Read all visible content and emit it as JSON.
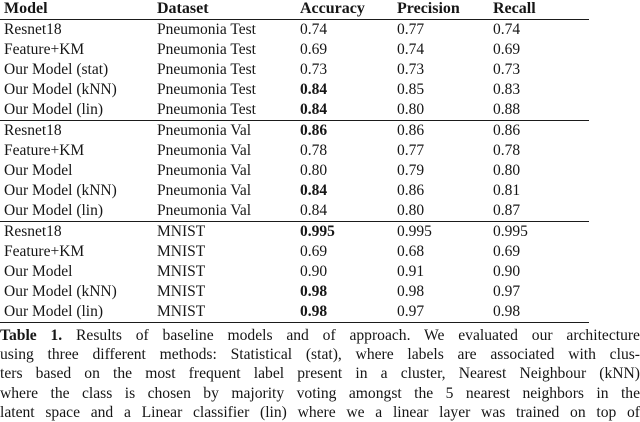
{
  "table": {
    "headers": {
      "model": "Model",
      "dataset": "Dataset",
      "accuracy": "Accuracy",
      "precision": "Precision",
      "recall": "Recall"
    },
    "rows": [
      {
        "model": "Resnet18",
        "dataset": "Pneumonia Test",
        "accuracy": "0.74",
        "precision": "0.77",
        "recall": "0.74",
        "accuracy_bold": false
      },
      {
        "model": "Feature+KM",
        "dataset": "Pneumonia Test",
        "accuracy": "0.69",
        "precision": "0.74",
        "recall": "0.69",
        "accuracy_bold": false
      },
      {
        "model": "Our Model (stat)",
        "dataset": "Pneumonia Test",
        "accuracy": "0.73",
        "precision": "0.73",
        "recall": "0.73",
        "accuracy_bold": false
      },
      {
        "model": "Our Model (kNN)",
        "dataset": "Pneumonia Test",
        "accuracy": "0.84",
        "precision": "0.85",
        "recall": "0.83",
        "accuracy_bold": true
      },
      {
        "model": "Our Model (lin)",
        "dataset": "Pneumonia Test",
        "accuracy": "0.84",
        "precision": "0.80",
        "recall": "0.88",
        "accuracy_bold": true
      },
      {
        "model": "Resnet18",
        "dataset": "Pneumonia Val",
        "accuracy": "0.86",
        "precision": "0.86",
        "recall": "0.86",
        "accuracy_bold": true
      },
      {
        "model": "Feature+KM",
        "dataset": "Pneumonia Val",
        "accuracy": "0.78",
        "precision": "0.77",
        "recall": "0.78",
        "accuracy_bold": false
      },
      {
        "model": "Our Model",
        "dataset": "Pneumonia Val",
        "accuracy": "0.80",
        "precision": "0.79",
        "recall": "0.80",
        "accuracy_bold": false
      },
      {
        "model": "Our Model (kNN)",
        "dataset": "Pneumonia Val",
        "accuracy": "0.84",
        "precision": "0.86",
        "recall": "0.81",
        "accuracy_bold": true
      },
      {
        "model": "Our Model (lin)",
        "dataset": "Pneumonia Val",
        "accuracy": "0.84",
        "precision": "0.80",
        "recall": "0.87",
        "accuracy_bold": false
      },
      {
        "model": "Resnet18",
        "dataset": "MNIST",
        "accuracy": "0.995",
        "precision": "0.995",
        "recall": "0.995",
        "accuracy_bold": true
      },
      {
        "model": "Feature+KM",
        "dataset": "MNIST",
        "accuracy": "0.69",
        "precision": "0.68",
        "recall": "0.69",
        "accuracy_bold": false
      },
      {
        "model": "Our Model",
        "dataset": "MNIST",
        "accuracy": "0.90",
        "precision": "0.91",
        "recall": "0.90",
        "accuracy_bold": false
      },
      {
        "model": "Our Model (kNN)",
        "dataset": "MNIST",
        "accuracy": "0.98",
        "precision": "0.98",
        "recall": "0.97",
        "accuracy_bold": true
      },
      {
        "model": "Our Model (lin)",
        "dataset": "MNIST",
        "accuracy": "0.98",
        "precision": "0.97",
        "recall": "0.98",
        "accuracy_bold": true
      }
    ]
  },
  "caption": {
    "label": "Table 1.",
    "intro": " Results of baseline models and of approach. We evaluated our architecture",
    "lines": [
      "using three different methods: Statistical (stat), where labels are associated with clus-",
      "ters based on the most frequent label present in a cluster, Nearest Neighbour (kNN)",
      "where the class is chosen by majority voting amongst the 5 nearest neighbors in the",
      "latent space and a Linear classifier (lin) where we a linear layer was trained on top of"
    ]
  }
}
